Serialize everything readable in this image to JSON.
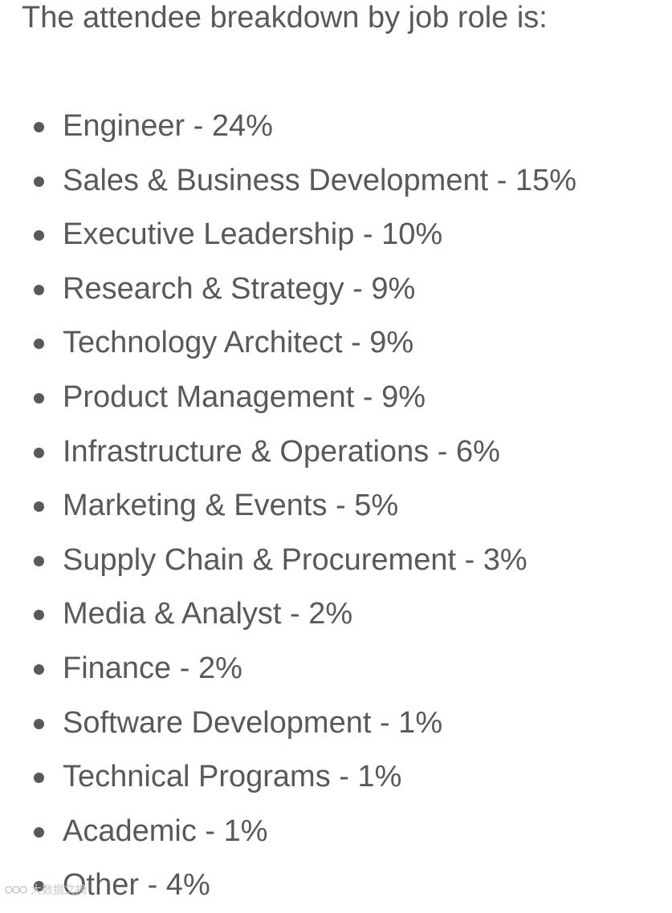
{
  "intro_text": "The attendee breakdown by job role is:",
  "roles": [
    {
      "label": "Engineer - 24%"
    },
    {
      "label": "Sales & Business Development - 15%"
    },
    {
      "label": "Executive Leadership - 10%"
    },
    {
      "label": "Research & Strategy - 9%"
    },
    {
      "label": "Technology Architect - 9%"
    },
    {
      "label": "Product Management - 9%"
    },
    {
      "label": "Infrastructure & Operations - 6%"
    },
    {
      "label": "Marketing & Events - 5%"
    },
    {
      "label": "Supply Chain & Procurement - 3%"
    },
    {
      "label": "Media & Analyst - 2%"
    },
    {
      "label": "Finance - 2%"
    },
    {
      "label": "Software Development - 1%"
    },
    {
      "label": "Technical Programs - 1%"
    },
    {
      "label": "Academic - 1%"
    },
    {
      "label": "Other - 4%"
    }
  ],
  "watermark": {
    "text": "大数据文摘"
  },
  "colors": {
    "text": "#595959",
    "background": "#ffffff",
    "watermark": "#c8c8c8"
  }
}
